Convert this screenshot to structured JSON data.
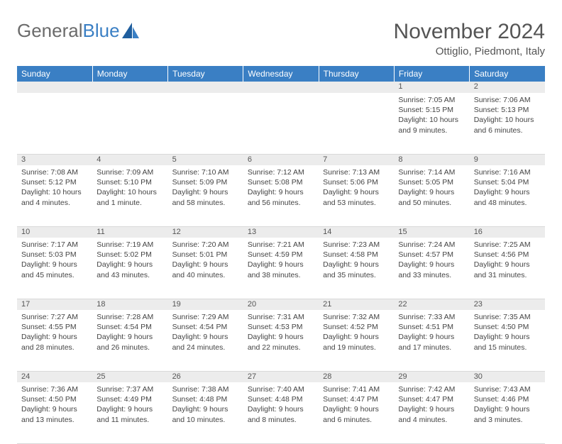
{
  "brand": {
    "part1": "General",
    "part2": "Blue"
  },
  "title": "November 2024",
  "location": "Ottiglio, Piedmont, Italy",
  "colors": {
    "header_bg": "#3a7fc4",
    "header_fg": "#ffffff",
    "daynum_bg": "#ececec",
    "text": "#444444",
    "grid": "#d9d9d9"
  },
  "weekdays": [
    "Sunday",
    "Monday",
    "Tuesday",
    "Wednesday",
    "Thursday",
    "Friday",
    "Saturday"
  ],
  "weeks": [
    [
      null,
      null,
      null,
      null,
      null,
      {
        "n": "1",
        "sr": "Sunrise: 7:05 AM",
        "ss": "Sunset: 5:15 PM",
        "d1": "Daylight: 10 hours",
        "d2": "and 9 minutes."
      },
      {
        "n": "2",
        "sr": "Sunrise: 7:06 AM",
        "ss": "Sunset: 5:13 PM",
        "d1": "Daylight: 10 hours",
        "d2": "and 6 minutes."
      }
    ],
    [
      {
        "n": "3",
        "sr": "Sunrise: 7:08 AM",
        "ss": "Sunset: 5:12 PM",
        "d1": "Daylight: 10 hours",
        "d2": "and 4 minutes."
      },
      {
        "n": "4",
        "sr": "Sunrise: 7:09 AM",
        "ss": "Sunset: 5:10 PM",
        "d1": "Daylight: 10 hours",
        "d2": "and 1 minute."
      },
      {
        "n": "5",
        "sr": "Sunrise: 7:10 AM",
        "ss": "Sunset: 5:09 PM",
        "d1": "Daylight: 9 hours",
        "d2": "and 58 minutes."
      },
      {
        "n": "6",
        "sr": "Sunrise: 7:12 AM",
        "ss": "Sunset: 5:08 PM",
        "d1": "Daylight: 9 hours",
        "d2": "and 56 minutes."
      },
      {
        "n": "7",
        "sr": "Sunrise: 7:13 AM",
        "ss": "Sunset: 5:06 PM",
        "d1": "Daylight: 9 hours",
        "d2": "and 53 minutes."
      },
      {
        "n": "8",
        "sr": "Sunrise: 7:14 AM",
        "ss": "Sunset: 5:05 PM",
        "d1": "Daylight: 9 hours",
        "d2": "and 50 minutes."
      },
      {
        "n": "9",
        "sr": "Sunrise: 7:16 AM",
        "ss": "Sunset: 5:04 PM",
        "d1": "Daylight: 9 hours",
        "d2": "and 48 minutes."
      }
    ],
    [
      {
        "n": "10",
        "sr": "Sunrise: 7:17 AM",
        "ss": "Sunset: 5:03 PM",
        "d1": "Daylight: 9 hours",
        "d2": "and 45 minutes."
      },
      {
        "n": "11",
        "sr": "Sunrise: 7:19 AM",
        "ss": "Sunset: 5:02 PM",
        "d1": "Daylight: 9 hours",
        "d2": "and 43 minutes."
      },
      {
        "n": "12",
        "sr": "Sunrise: 7:20 AM",
        "ss": "Sunset: 5:01 PM",
        "d1": "Daylight: 9 hours",
        "d2": "and 40 minutes."
      },
      {
        "n": "13",
        "sr": "Sunrise: 7:21 AM",
        "ss": "Sunset: 4:59 PM",
        "d1": "Daylight: 9 hours",
        "d2": "and 38 minutes."
      },
      {
        "n": "14",
        "sr": "Sunrise: 7:23 AM",
        "ss": "Sunset: 4:58 PM",
        "d1": "Daylight: 9 hours",
        "d2": "and 35 minutes."
      },
      {
        "n": "15",
        "sr": "Sunrise: 7:24 AM",
        "ss": "Sunset: 4:57 PM",
        "d1": "Daylight: 9 hours",
        "d2": "and 33 minutes."
      },
      {
        "n": "16",
        "sr": "Sunrise: 7:25 AM",
        "ss": "Sunset: 4:56 PM",
        "d1": "Daylight: 9 hours",
        "d2": "and 31 minutes."
      }
    ],
    [
      {
        "n": "17",
        "sr": "Sunrise: 7:27 AM",
        "ss": "Sunset: 4:55 PM",
        "d1": "Daylight: 9 hours",
        "d2": "and 28 minutes."
      },
      {
        "n": "18",
        "sr": "Sunrise: 7:28 AM",
        "ss": "Sunset: 4:54 PM",
        "d1": "Daylight: 9 hours",
        "d2": "and 26 minutes."
      },
      {
        "n": "19",
        "sr": "Sunrise: 7:29 AM",
        "ss": "Sunset: 4:54 PM",
        "d1": "Daylight: 9 hours",
        "d2": "and 24 minutes."
      },
      {
        "n": "20",
        "sr": "Sunrise: 7:31 AM",
        "ss": "Sunset: 4:53 PM",
        "d1": "Daylight: 9 hours",
        "d2": "and 22 minutes."
      },
      {
        "n": "21",
        "sr": "Sunrise: 7:32 AM",
        "ss": "Sunset: 4:52 PM",
        "d1": "Daylight: 9 hours",
        "d2": "and 19 minutes."
      },
      {
        "n": "22",
        "sr": "Sunrise: 7:33 AM",
        "ss": "Sunset: 4:51 PM",
        "d1": "Daylight: 9 hours",
        "d2": "and 17 minutes."
      },
      {
        "n": "23",
        "sr": "Sunrise: 7:35 AM",
        "ss": "Sunset: 4:50 PM",
        "d1": "Daylight: 9 hours",
        "d2": "and 15 minutes."
      }
    ],
    [
      {
        "n": "24",
        "sr": "Sunrise: 7:36 AM",
        "ss": "Sunset: 4:50 PM",
        "d1": "Daylight: 9 hours",
        "d2": "and 13 minutes."
      },
      {
        "n": "25",
        "sr": "Sunrise: 7:37 AM",
        "ss": "Sunset: 4:49 PM",
        "d1": "Daylight: 9 hours",
        "d2": "and 11 minutes."
      },
      {
        "n": "26",
        "sr": "Sunrise: 7:38 AM",
        "ss": "Sunset: 4:48 PM",
        "d1": "Daylight: 9 hours",
        "d2": "and 10 minutes."
      },
      {
        "n": "27",
        "sr": "Sunrise: 7:40 AM",
        "ss": "Sunset: 4:48 PM",
        "d1": "Daylight: 9 hours",
        "d2": "and 8 minutes."
      },
      {
        "n": "28",
        "sr": "Sunrise: 7:41 AM",
        "ss": "Sunset: 4:47 PM",
        "d1": "Daylight: 9 hours",
        "d2": "and 6 minutes."
      },
      {
        "n": "29",
        "sr": "Sunrise: 7:42 AM",
        "ss": "Sunset: 4:47 PM",
        "d1": "Daylight: 9 hours",
        "d2": "and 4 minutes."
      },
      {
        "n": "30",
        "sr": "Sunrise: 7:43 AM",
        "ss": "Sunset: 4:46 PM",
        "d1": "Daylight: 9 hours",
        "d2": "and 3 minutes."
      }
    ]
  ]
}
